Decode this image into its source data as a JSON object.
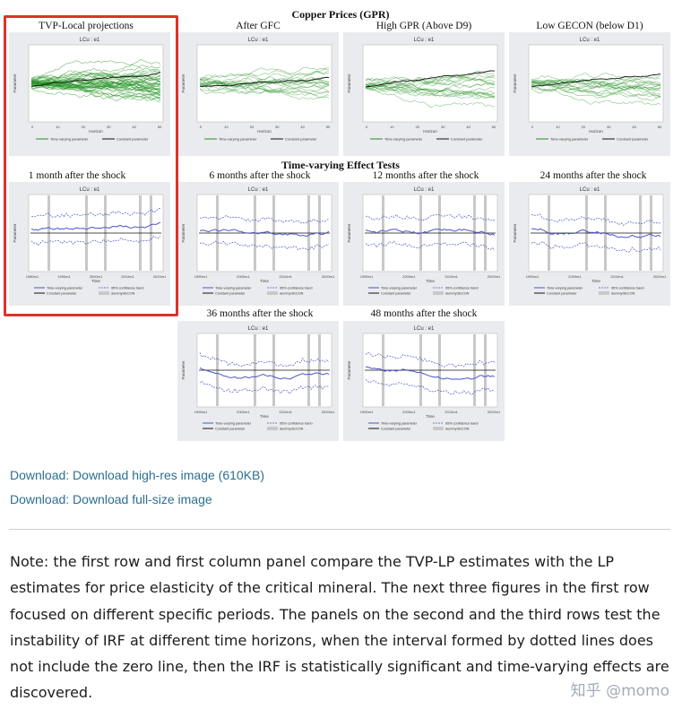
{
  "figure": {
    "section1_title": "Copper Prices (GPR)",
    "section2_title": "Time-varying Effect Tests",
    "top_panels": [
      {
        "title": "TVP-Local projections",
        "inner_title": "LCu : e1",
        "xlabel": "Horizon",
        "ylabel": "Parameter",
        "ticks": [
          "0",
          "10",
          "20",
          "30",
          "40",
          "50"
        ],
        "legend": [
          "Time-varying parameter",
          "Constant parameter"
        ]
      },
      {
        "title": "After GFC",
        "inner_title": "LCu : e1",
        "xlabel": "Horizon",
        "ylabel": "Parameter",
        "ticks": [
          "0",
          "10",
          "20",
          "30",
          "40",
          "50"
        ],
        "legend": [
          "Time-varying parameter",
          "Constant parameter"
        ]
      },
      {
        "title": "High GPR (Above D9)",
        "inner_title": "LCu : e1",
        "xlabel": "Horizon",
        "ylabel": "Parameter",
        "ticks": [
          "0",
          "10",
          "20",
          "30",
          "40",
          "50"
        ],
        "legend": [
          "Time-varying parameter",
          "Constant parameter"
        ]
      },
      {
        "title": "Low GECON (below D1)",
        "inner_title": "LCu : e1",
        "xlabel": "Horizon",
        "ylabel": "Parameter",
        "ticks": [
          "0",
          "10",
          "20",
          "30",
          "40",
          "50"
        ],
        "legend": [
          "Time-varying parameter",
          "Constant parameter"
        ]
      }
    ],
    "test_panels": [
      {
        "title": "1 month after the shock",
        "inner_title": "LCu : e1",
        "xlabel": "Time",
        "ylabel": "Parameter",
        "ticks": [
          "1980m1",
          "1990m1",
          "2000m1",
          "2010m1",
          "2020m1"
        ],
        "legend": [
          "Time-varying parameter",
          "95% confidence band",
          "Constant parameter",
          "dummyGECON"
        ]
      },
      {
        "title": "6 months after the shock",
        "inner_title": "LCu : e1",
        "xlabel": "Time",
        "ylabel": "Parameter",
        "ticks": [
          "1990m1",
          "2000m1",
          "2010m1",
          "2020m1"
        ],
        "legend": [
          "Time-varying parameter",
          "95% confidence band",
          "Constant parameter",
          "dummyGECON"
        ]
      },
      {
        "title": "12 months after the shock",
        "inner_title": "LCu : e1",
        "xlabel": "Time",
        "ylabel": "Parameter",
        "ticks": [
          "1990m1",
          "2000m1",
          "2010m1",
          "2020m1"
        ],
        "legend": [
          "Time-varying parameter",
          "95% confidence band",
          "Constant parameter",
          "dummyGECON"
        ]
      },
      {
        "title": "24 months after the shock",
        "inner_title": "LCu : e1",
        "xlabel": "Time",
        "ylabel": "Parameter",
        "ticks": [
          "1990m1",
          "2000m1",
          "2010m1",
          "2020m1"
        ],
        "legend": [
          "Time-varying parameter",
          "95% confidence band",
          "Constant parameter",
          "dummyGECON"
        ]
      },
      {
        "title": "36 months after the shock",
        "inner_title": "LCu : e1",
        "xlabel": "Time",
        "ylabel": "Parameter",
        "ticks": [
          "1990m1",
          "2000m1",
          "2010m1",
          "2020m1"
        ],
        "legend": [
          "Time-varying parameter",
          "95% confidence band",
          "Constant parameter",
          "dummyGECON"
        ]
      },
      {
        "title": "48 months after the shock",
        "inner_title": "LCu : e1",
        "xlabel": "Time",
        "ylabel": "Parameter",
        "ticks": [
          "1990m1",
          "2000m1",
          "2010m1",
          "2020m1"
        ],
        "legend": [
          "Time-varying parameter",
          "95% confidence band",
          "Constant parameter",
          "dummyGECON"
        ]
      }
    ],
    "highlight_color": "#e0312a",
    "line_blue": "#4a56c8",
    "band_green": "#1f8f1f"
  },
  "links": {
    "hires": "Download: Download high-res image (610KB)",
    "fullsize": "Download: Download full-size image"
  },
  "note": "Note: the first row and first column panel compare the TVP-LP estimates with the LP estimates for price elasticity of the critical mineral. The next three figures in the first row focused on different specific periods. The panels on the second and the third rows test the instability of IRF at different time horizons, when the interval formed by dotted lines does not include the zero line, then the IRF is statistically significant and time-varying effects are discovered.",
  "watermark": "知乎 @momo"
}
